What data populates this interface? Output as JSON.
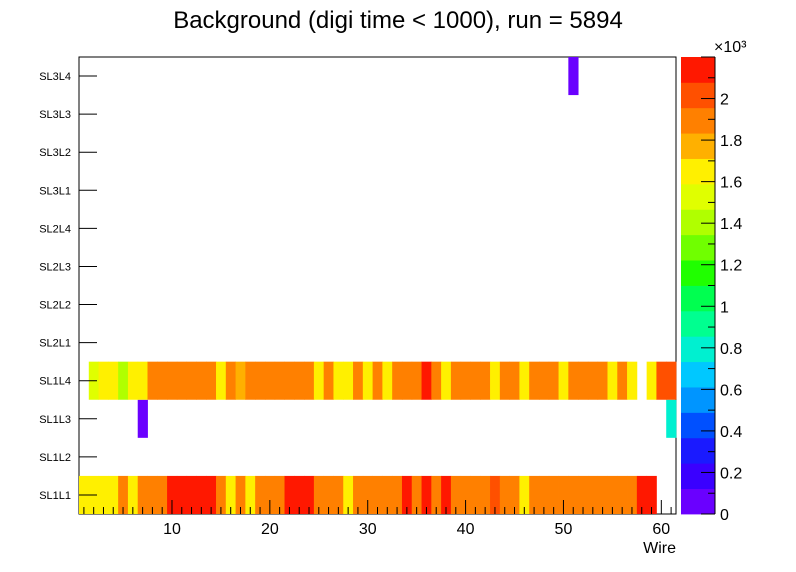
{
  "chart_data": {
    "type": "heatmap",
    "title": "Background (digi time < 1000), run = 5894",
    "xlabel": "Wire",
    "ylabel": "",
    "xlim": [
      0.5,
      61.5
    ],
    "x_ticks": [
      "10",
      "20",
      "30",
      "40",
      "50",
      "60"
    ],
    "x_tick_values": [
      10,
      20,
      30,
      40,
      50,
      60
    ],
    "y_categories": [
      "SL1L1",
      "SL1L2",
      "SL1L3",
      "SL1L4",
      "SL2L1",
      "SL2L2",
      "SL2L3",
      "SL2L4",
      "SL3L1",
      "SL3L2",
      "SL3L3",
      "SL3L4"
    ],
    "zlim": [
      0,
      2200
    ],
    "z_exponent_label": "×10³",
    "z_ticks": [
      "0",
      "0.2",
      "0.4",
      "0.6",
      "0.8",
      "1",
      "1.2",
      "1.4",
      "1.6",
      "1.8",
      "2"
    ],
    "z_tick_values": [
      0,
      200,
      400,
      600,
      800,
      1000,
      1200,
      1400,
      1600,
      1800,
      2000
    ],
    "palette": [
      "#6a00ff",
      "#3a00ff",
      "#1a1aff",
      "#0050ff",
      "#0095ff",
      "#00c8ff",
      "#00f0d0",
      "#00ff90",
      "#00ff50",
      "#20ff00",
      "#70ff00",
      "#b0ff00",
      "#e0ff00",
      "#fff000",
      "#ffb000",
      "#ff8000",
      "#ff5000",
      "#ff1800"
    ],
    "values": {
      "SL1L1": [
        1700,
        1700,
        1650,
        1700,
        1900,
        1650,
        1850,
        1950,
        1900,
        2100,
        2150,
        2150,
        2150,
        2150,
        1850,
        1700,
        1850,
        1700,
        1900,
        1900,
        1900,
        2150,
        2150,
        2150,
        1850,
        1850,
        1850,
        1650,
        1850,
        1850,
        1950,
        1950,
        1850,
        2200,
        1850,
        2100,
        1850,
        2100,
        1950,
        1950,
        1950,
        1950,
        2050,
        1850,
        1850,
        1700,
        1850,
        1850,
        1950,
        1950,
        1950,
        1950,
        1950,
        1950,
        1950,
        1950,
        1950,
        2150,
        2150,
        null,
        null
      ],
      "SL1L2": [],
      "SL1L3": [
        null,
        null,
        null,
        null,
        null,
        null,
        100,
        null,
        null,
        null,
        null,
        null,
        null,
        null,
        null,
        null,
        null,
        null,
        null,
        null,
        null,
        null,
        null,
        null,
        null,
        null,
        null,
        null,
        null,
        null,
        null,
        null,
        null,
        null,
        null,
        null,
        null,
        null,
        null,
        null,
        null,
        null,
        null,
        null,
        null,
        null,
        null,
        null,
        null,
        null,
        null,
        null,
        null,
        null,
        null,
        null,
        null,
        null,
        null,
        null,
        780
      ],
      "SL1L4": [
        null,
        1500,
        1600,
        1600,
        1450,
        1650,
        1600,
        1850,
        1850,
        1950,
        1950,
        1950,
        1950,
        1950,
        1700,
        1950,
        1800,
        1950,
        1950,
        1950,
        1950,
        1950,
        1950,
        1950,
        1700,
        1950,
        1700,
        1650,
        1850,
        1700,
        1850,
        1700,
        1850,
        1850,
        1850,
        2100,
        1950,
        1700,
        1850,
        1850,
        1850,
        1850,
        1700,
        1950,
        1950,
        1700,
        1950,
        1850,
        1850,
        1700,
        1850,
        1850,
        1850,
        1950,
        1650,
        1850,
        1650,
        null,
        1700,
        2050,
        2050
      ],
      "SL2L1": [],
      "SL2L2": [],
      "SL2L3": [],
      "SL2L4": [],
      "SL3L1": [],
      "SL3L2": [],
      "SL3L3": [],
      "SL3L4": [
        null,
        null,
        null,
        null,
        null,
        null,
        null,
        null,
        null,
        null,
        null,
        null,
        null,
        null,
        null,
        null,
        null,
        null,
        null,
        null,
        null,
        null,
        null,
        null,
        null,
        null,
        null,
        null,
        null,
        null,
        null,
        null,
        null,
        null,
        null,
        null,
        null,
        null,
        null,
        null,
        null,
        null,
        null,
        null,
        null,
        null,
        null,
        null,
        null,
        null,
        80
      ]
    }
  }
}
